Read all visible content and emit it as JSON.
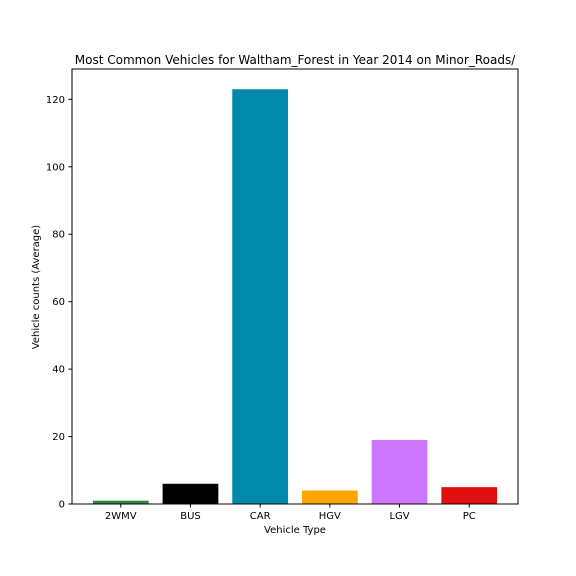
{
  "chart_data": {
    "type": "bar",
    "title": "Most Common Vehicles for Waltham_Forest in Year 2014 on Minor_Roads/",
    "xlabel": "Vehicle Type",
    "ylabel": "Vehicle counts (Average)",
    "categories": [
      "2WMV",
      "BUS",
      "CAR",
      "HGV",
      "LGV",
      "PC"
    ],
    "values": [
      1,
      6,
      123,
      4,
      19,
      5
    ],
    "colors": [
      "#2e8b3e",
      "#000000",
      "#0088aa",
      "#ffa500",
      "#cc77ff",
      "#e01010"
    ],
    "ylim": [
      0,
      129
    ],
    "yticks": [
      0,
      20,
      40,
      60,
      80,
      100,
      120
    ],
    "grid": false,
    "legend": "none"
  }
}
